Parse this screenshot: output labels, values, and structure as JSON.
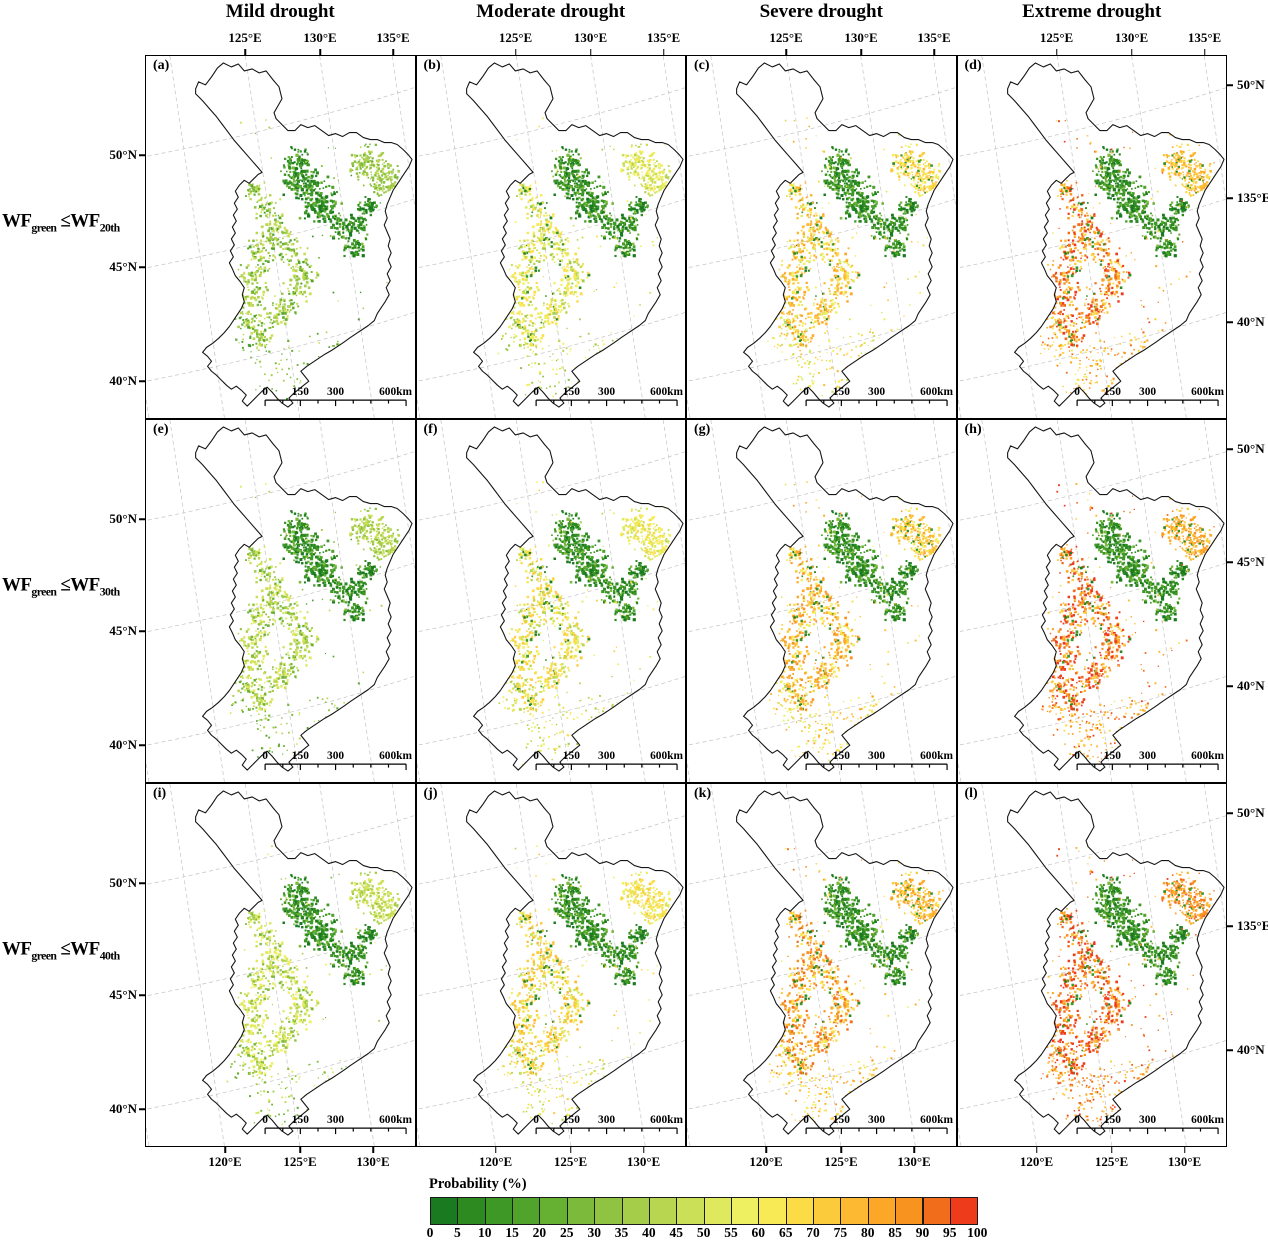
{
  "columns": [
    "Mild drought",
    "Moderate drought",
    "Severe drought",
    "Extreme drought"
  ],
  "rows": [
    {
      "wf": "WF",
      "sub": "green",
      "op": "≤WF",
      "sub2": "20th"
    },
    {
      "wf": "WF",
      "sub": "green",
      "op": "≤WF",
      "sub2": "30th"
    },
    {
      "wf": "WF",
      "sub": "green",
      "op": "≤WF",
      "sub2": "40th"
    }
  ],
  "panels": [
    {
      "letter": "(a)"
    },
    {
      "letter": "(b)"
    },
    {
      "letter": "(c)"
    },
    {
      "letter": "(d)"
    },
    {
      "letter": "(e)"
    },
    {
      "letter": "(f)"
    },
    {
      "letter": "(g)"
    },
    {
      "letter": "(h)"
    },
    {
      "letter": "(i)"
    },
    {
      "letter": "(j)"
    },
    {
      "letter": "(k)"
    },
    {
      "letter": "(l)"
    }
  ],
  "axis": {
    "top": [
      "125°E",
      "130°E",
      "135°E"
    ],
    "bottom": [
      "120°E",
      "125°E",
      "130°E"
    ],
    "left": [
      "50°N",
      "45°N",
      "40°N"
    ],
    "right_row1": [
      "50°N",
      "135°E",
      "40°N"
    ],
    "right_row2": [
      "50°N",
      "45°N",
      "40°N"
    ],
    "right_row3": [
      "50°N",
      "135°E",
      "40°N"
    ]
  },
  "scalebar": {
    "labels": [
      "0",
      "150",
      "300"
    ],
    "end": "600km"
  },
  "colorbar": {
    "title": "Probability (%)",
    "ticks": [
      "0",
      "5",
      "10",
      "15",
      "20",
      "25",
      "30",
      "35",
      "40",
      "45",
      "50",
      "55",
      "60",
      "65",
      "70",
      "75",
      "80",
      "85",
      "90",
      "95",
      "100"
    ],
    "colors": [
      "#1a7a1f",
      "#2c8a21",
      "#3e9825",
      "#51a42b",
      "#66b032",
      "#7bba3a",
      "#90c342",
      "#a5cd4a",
      "#b9d650",
      "#cce057",
      "#dfe95d",
      "#eef062",
      "#f7ea55",
      "#fbdc47",
      "#fccb3b",
      "#fdb931",
      "#fca728",
      "#f99320",
      "#f16c1b",
      "#ee3b1c"
    ]
  }
}
